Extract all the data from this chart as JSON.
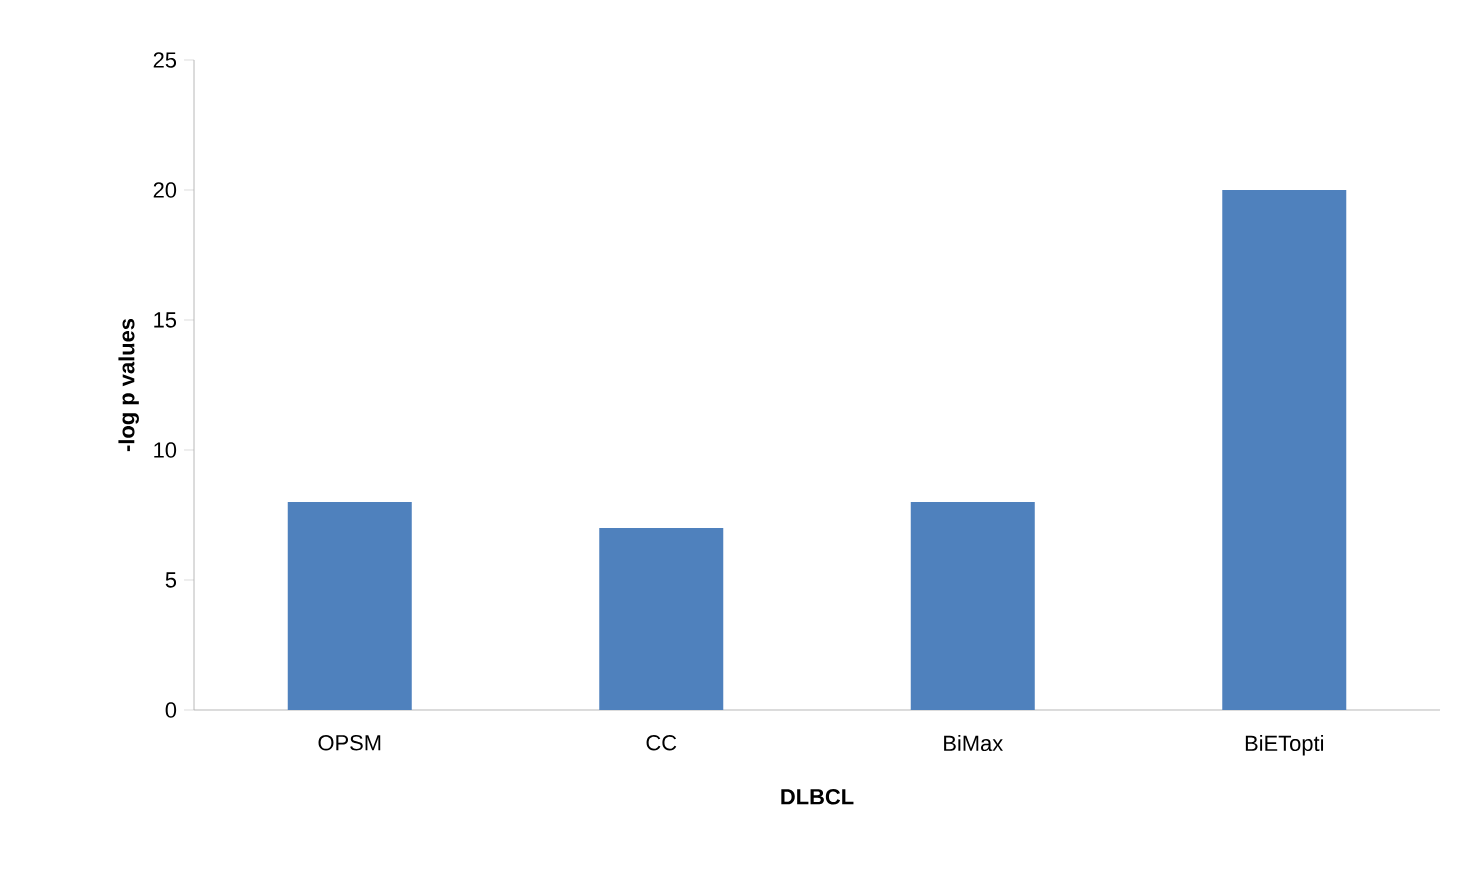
{
  "chart_data": {
    "type": "bar",
    "xlabel": "DLBCL",
    "ylabel": "-log p values",
    "categories": [
      "OPSM",
      "CC",
      "BiMax",
      "BiETopti"
    ],
    "values": [
      8,
      7,
      8,
      20
    ],
    "color": "#4f81bd",
    "ylim": [
      0,
      25
    ],
    "yticks": [
      0,
      5,
      10,
      15,
      20,
      25
    ],
    "grid": false
  }
}
